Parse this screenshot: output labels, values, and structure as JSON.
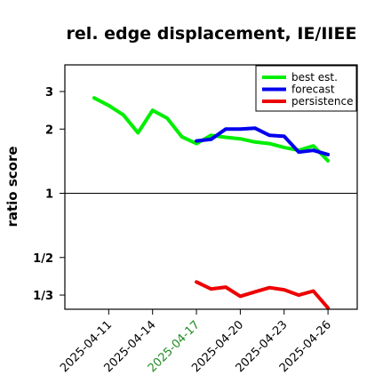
{
  "chart_data": {
    "type": "line",
    "title": "rel. edge displacement, IE/IIEE",
    "ylabel": "ratio score",
    "scale": "log",
    "ylim": [
      0.286,
      4.0
    ],
    "xlim": [
      "2025-04-08",
      "2025-04-28"
    ],
    "hline": 1,
    "yticks": [
      {
        "value": 0.3333,
        "label": "1/3"
      },
      {
        "value": 0.5,
        "label": "1/2"
      },
      {
        "value": 1,
        "label": "1"
      },
      {
        "value": 2,
        "label": "2"
      },
      {
        "value": 3,
        "label": "3"
      }
    ],
    "xticks": [
      {
        "date": "2025-04-11",
        "label": "2025-04-11",
        "color": "#000000"
      },
      {
        "date": "2025-04-14",
        "label": "2025-04-14",
        "color": "#000000"
      },
      {
        "date": "2025-04-17",
        "label": "2025-04-17",
        "color": "#228B22"
      },
      {
        "date": "2025-04-20",
        "label": "2025-04-20",
        "color": "#000000"
      },
      {
        "date": "2025-04-23",
        "label": "2025-04-23",
        "color": "#000000"
      },
      {
        "date": "2025-04-26",
        "label": "2025-04-26",
        "color": "#000000"
      }
    ],
    "legend_position": "top-right",
    "series": [
      {
        "name": "best est.",
        "color": "#00ee00",
        "points": [
          {
            "x": "2025-04-10",
            "y": 2.8
          },
          {
            "x": "2025-04-11",
            "y": 2.58
          },
          {
            "x": "2025-04-12",
            "y": 2.33
          },
          {
            "x": "2025-04-13",
            "y": 1.92
          },
          {
            "x": "2025-04-14",
            "y": 2.45
          },
          {
            "x": "2025-04-15",
            "y": 2.25
          },
          {
            "x": "2025-04-16",
            "y": 1.84
          },
          {
            "x": "2025-04-17",
            "y": 1.71
          },
          {
            "x": "2025-04-18",
            "y": 1.87
          },
          {
            "x": "2025-04-19",
            "y": 1.83
          },
          {
            "x": "2025-04-20",
            "y": 1.8
          },
          {
            "x": "2025-04-21",
            "y": 1.74
          },
          {
            "x": "2025-04-22",
            "y": 1.71
          },
          {
            "x": "2025-04-23",
            "y": 1.64
          },
          {
            "x": "2025-04-24",
            "y": 1.59
          },
          {
            "x": "2025-04-25",
            "y": 1.67
          },
          {
            "x": "2025-04-26",
            "y": 1.42
          }
        ]
      },
      {
        "name": "forecast",
        "color": "#0000ee",
        "points": [
          {
            "x": "2025-04-17",
            "y": 1.76
          },
          {
            "x": "2025-04-18",
            "y": 1.79
          },
          {
            "x": "2025-04-19",
            "y": 2.0
          },
          {
            "x": "2025-04-20",
            "y": 2.0
          },
          {
            "x": "2025-04-21",
            "y": 2.02
          },
          {
            "x": "2025-04-22",
            "y": 1.87
          },
          {
            "x": "2025-04-23",
            "y": 1.85
          },
          {
            "x": "2025-04-24",
            "y": 1.56
          },
          {
            "x": "2025-04-25",
            "y": 1.59
          },
          {
            "x": "2025-04-26",
            "y": 1.52
          }
        ]
      },
      {
        "name": "persistence",
        "color": "#ee0000",
        "points": [
          {
            "x": "2025-04-17",
            "y": 0.384
          },
          {
            "x": "2025-04-18",
            "y": 0.356
          },
          {
            "x": "2025-04-19",
            "y": 0.363
          },
          {
            "x": "2025-04-20",
            "y": 0.329
          },
          {
            "x": "2025-04-21",
            "y": 0.345
          },
          {
            "x": "2025-04-22",
            "y": 0.361
          },
          {
            "x": "2025-04-23",
            "y": 0.353
          },
          {
            "x": "2025-04-24",
            "y": 0.333
          },
          {
            "x": "2025-04-25",
            "y": 0.348
          },
          {
            "x": "2025-04-26",
            "y": 0.29
          }
        ]
      }
    ]
  }
}
